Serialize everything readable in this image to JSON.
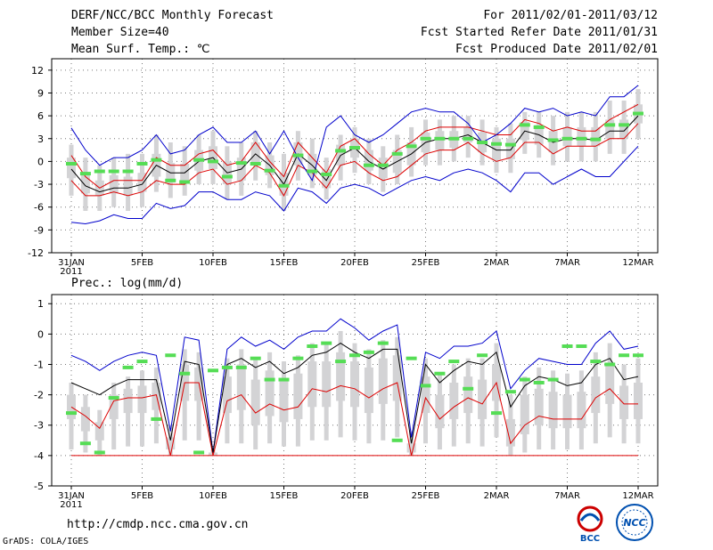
{
  "header": {
    "title": "DERF/NCC/BCC Monthly Forecast",
    "member": "Member Size=40",
    "variable": "Mean Surf. Temp.: ℃",
    "period": "For 2011/02/01-2011/03/12",
    "start": "Fcst Started Refer Date 2011/01/31",
    "produced": "Fcst Produced Date 2011/02/01"
  },
  "footer": {
    "url": "http://cmdp.ncc.cma.gov.cn",
    "grads": "GrADS: COLA/IGES",
    "logo1_text": "BCC",
    "logo2_text": "NCC"
  },
  "chart_data": [
    {
      "type": "line",
      "title": "Mean Surf. Temp.: ℃",
      "x_tick_labels": [
        "31JAN",
        "5FEB",
        "10FEB",
        "15FEB",
        "20FEB",
        "25FEB",
        "2MAR",
        "7MAR",
        "12MAR"
      ],
      "x_tick_sublabel": "2011",
      "ylim": [
        -12,
        13.5
      ],
      "yticks": [
        -12,
        -9,
        -6,
        -3,
        0,
        3,
        6,
        9,
        12
      ],
      "series": [
        {
          "name": "max",
          "color": "#0000cc",
          "values": [
            4.4,
            1.5,
            -0.5,
            0.5,
            0.5,
            1.5,
            3.5,
            1.0,
            1.5,
            3.5,
            4.5,
            2.5,
            2.5,
            4.0,
            1.0,
            4.0,
            0.5,
            -2.5,
            4.5,
            6.0,
            3.5,
            2.5,
            3.5,
            5.0,
            6.5,
            7.0,
            6.5,
            6.5,
            5.0,
            2.5,
            3.5,
            5.0,
            7.0,
            6.5,
            7.0,
            6.0,
            6.5,
            6.0,
            8.5,
            8.5,
            10.0
          ]
        },
        {
          "name": "upper",
          "color": "#dd0000",
          "values": [
            0.8,
            -2.0,
            -3.5,
            -2.5,
            -2.5,
            -2.5,
            0.5,
            -0.5,
            -0.5,
            1.0,
            1.5,
            -0.5,
            0.0,
            2.5,
            0.0,
            -2.0,
            2.5,
            0.5,
            -1.5,
            2.0,
            3.0,
            1.0,
            -0.5,
            1.5,
            2.5,
            4.0,
            4.5,
            4.5,
            4.5,
            4.0,
            3.5,
            3.5,
            5.5,
            5.0,
            4.0,
            4.5,
            4.0,
            4.0,
            5.5,
            6.5,
            7.5
          ]
        },
        {
          "name": "mean",
          "color": "#000000",
          "values": [
            -1.0,
            -3.2,
            -4.0,
            -3.5,
            -3.5,
            -3.0,
            -0.5,
            -1.5,
            -1.5,
            0.0,
            0.5,
            -1.5,
            -1.0,
            1.0,
            -0.5,
            -3.0,
            1.0,
            -0.5,
            -2.5,
            0.8,
            1.8,
            0.0,
            -1.0,
            0.0,
            1.0,
            2.5,
            3.0,
            3.0,
            3.5,
            2.5,
            1.5,
            1.5,
            4.0,
            3.5,
            2.5,
            3.0,
            3.0,
            2.8,
            4.0,
            4.0,
            6.0
          ]
        },
        {
          "name": "lower",
          "color": "#dd0000",
          "values": [
            -2.5,
            -4.5,
            -4.5,
            -4.0,
            -4.5,
            -4.0,
            -2.5,
            -3.0,
            -3.0,
            -1.5,
            -1.0,
            -3.0,
            -2.5,
            -0.5,
            -1.5,
            -4.5,
            -0.5,
            -1.5,
            -3.5,
            -0.5,
            0.0,
            -1.5,
            -2.5,
            -2.0,
            -0.5,
            1.0,
            1.5,
            1.5,
            2.5,
            1.0,
            0.0,
            0.5,
            2.5,
            2.5,
            1.0,
            2.0,
            2.0,
            2.0,
            3.0,
            3.0,
            5.0
          ]
        },
        {
          "name": "min",
          "color": "#0000cc",
          "values": [
            -8.0,
            -8.2,
            -7.8,
            -7.0,
            -7.5,
            -7.5,
            -5.5,
            -6.2,
            -5.8,
            -4.0,
            -4.0,
            -5.0,
            -5.0,
            -4.0,
            -4.5,
            -6.5,
            -3.5,
            -4.0,
            -5.5,
            -3.5,
            -3.0,
            -3.5,
            -4.5,
            -3.5,
            -2.5,
            -2.0,
            -2.5,
            -1.5,
            -1.0,
            -1.5,
            -2.5,
            -4.0,
            -1.5,
            -1.5,
            -3.0,
            -2.0,
            -1.0,
            -2.0,
            -2.0,
            0.0,
            2.0
          ]
        },
        {
          "name": "green",
          "color": "#55dd55",
          "values": [
            -0.3,
            -1.6,
            -1.3,
            -1.3,
            -1.3,
            -0.3,
            0.2,
            -2.5,
            -2.7,
            0.2,
            0.0,
            -2.0,
            -0.2,
            -0.3,
            -1.2,
            -3.2,
            0.8,
            -1.3,
            -1.7,
            1.4,
            1.8,
            -0.5,
            -0.5,
            1.0,
            2.0,
            3.0,
            3.0,
            3.0,
            3.0,
            2.5,
            2.3,
            2.2,
            4.8,
            4.5,
            2.8,
            3.0,
            3.0,
            2.9,
            4.8,
            4.8,
            6.3
          ]
        },
        {
          "name": "box_outer_high",
          "color": "#d3d3d5",
          "values": [
            2.2,
            0.5,
            -0.5,
            0.5,
            1.0,
            1.0,
            3.5,
            2.5,
            2.0,
            3.5,
            4.0,
            2.0,
            2.5,
            4.0,
            2.5,
            1.0,
            4.0,
            3.0,
            0.5,
            3.5,
            4.5,
            3.0,
            2.0,
            3.5,
            4.5,
            5.5,
            5.5,
            6.0,
            6.0,
            5.5,
            4.5,
            5.0,
            6.5,
            6.5,
            6.0,
            6.5,
            6.5,
            6.5,
            8.0,
            8.0,
            9.5
          ]
        },
        {
          "name": "box_inner_high",
          "color": "#d3d3d5",
          "values": [
            0.5,
            -1.5,
            -2.5,
            -1.8,
            -2.0,
            -1.5,
            1.0,
            -0.2,
            -0.3,
            1.5,
            2.0,
            0.0,
            0.5,
            2.5,
            0.8,
            -1.5,
            2.5,
            1.0,
            -1.0,
            2.2,
            3.0,
            1.5,
            0.5,
            1.5,
            2.5,
            3.8,
            4.0,
            4.0,
            4.5,
            3.8,
            3.0,
            3.0,
            5.2,
            4.8,
            4.0,
            4.5,
            4.5,
            4.5,
            5.5,
            5.5,
            7.5
          ]
        },
        {
          "name": "box_inner_low",
          "color": "#d3d3d5",
          "values": [
            -2.2,
            -4.2,
            -4.5,
            -4.2,
            -4.5,
            -4.0,
            -2.0,
            -2.8,
            -2.8,
            -1.2,
            -1.0,
            -3.0,
            -2.5,
            -0.5,
            -1.8,
            -4.5,
            -0.5,
            -1.8,
            -3.5,
            -0.5,
            0.5,
            -1.2,
            -2.2,
            -1.5,
            -0.5,
            1.2,
            1.5,
            1.8,
            2.5,
            1.2,
            0.2,
            0.3,
            2.8,
            2.2,
            1.2,
            2.0,
            2.0,
            2.0,
            3.0,
            3.0,
            5.0
          ]
        },
        {
          "name": "box_outer_low",
          "color": "#d3d3d5",
          "values": [
            -4.5,
            -6.5,
            -6.5,
            -6.0,
            -6.5,
            -6.0,
            -4.0,
            -4.8,
            -4.5,
            -3.0,
            -3.0,
            -5.0,
            -4.5,
            -2.5,
            -3.5,
            -6.5,
            -2.5,
            -3.5,
            -5.0,
            -2.5,
            -1.5,
            -3.0,
            -4.0,
            -3.0,
            -2.0,
            -0.5,
            -0.5,
            0.0,
            0.5,
            -0.5,
            -1.5,
            -1.5,
            1.0,
            0.5,
            -0.5,
            0.0,
            0.0,
            0.0,
            1.0,
            1.0,
            3.0
          ]
        }
      ]
    },
    {
      "type": "line",
      "title": "Prec.: log(mm/d)",
      "x_tick_labels": [
        "31JAN",
        "5FEB",
        "10FEB",
        "15FEB",
        "20FEB",
        "25FEB",
        "2MAR",
        "7MAR",
        "12MAR"
      ],
      "x_tick_sublabel": "2011",
      "ylim": [
        -5,
        1.3
      ],
      "yticks": [
        -5,
        -4,
        -3,
        -2,
        -1,
        0,
        1
      ],
      "series": [
        {
          "name": "max",
          "color": "#0000cc",
          "values": [
            -0.7,
            -0.9,
            -1.2,
            -0.9,
            -0.7,
            -0.6,
            -0.7,
            -3.2,
            -0.1,
            -0.2,
            -3.9,
            -0.5,
            -0.1,
            -0.4,
            -0.2,
            -0.5,
            -0.1,
            0.1,
            0.1,
            0.5,
            0.2,
            -0.2,
            0.1,
            0.3,
            -3.4,
            -0.6,
            -0.8,
            -0.4,
            -0.4,
            -0.3,
            0.1,
            -1.8,
            -1.2,
            -0.8,
            -0.9,
            -1.0,
            -1.0,
            -0.3,
            0.1,
            -0.5,
            -0.4
          ]
        },
        {
          "name": "mean",
          "color": "#000000",
          "values": [
            -1.6,
            -1.8,
            -2.0,
            -1.7,
            -1.5,
            -1.5,
            -1.5,
            -3.5,
            -0.9,
            -1.0,
            -3.9,
            -1.0,
            -0.8,
            -1.1,
            -0.9,
            -1.3,
            -1.1,
            -0.7,
            -0.6,
            -0.3,
            -0.6,
            -0.8,
            -0.5,
            -0.5,
            -3.6,
            -1.0,
            -1.6,
            -1.2,
            -0.9,
            -1.0,
            -0.6,
            -2.4,
            -1.7,
            -1.4,
            -1.5,
            -1.7,
            -1.6,
            -1.0,
            -0.8,
            -1.5,
            -1.4
          ]
        },
        {
          "name": "lower",
          "color": "#dd0000",
          "values": [
            -2.4,
            -2.7,
            -3.1,
            -2.2,
            -2.1,
            -2.1,
            -2.0,
            -4.0,
            -1.6,
            -1.6,
            -4.0,
            -2.2,
            -2.0,
            -2.6,
            -2.3,
            -2.5,
            -2.4,
            -1.8,
            -1.9,
            -1.7,
            -1.8,
            -2.1,
            -1.8,
            -1.6,
            -4.0,
            -2.1,
            -2.8,
            -2.4,
            -2.1,
            -2.3,
            -1.6,
            -3.6,
            -3.0,
            -2.7,
            -2.8,
            -2.8,
            -2.8,
            -2.1,
            -1.8,
            -2.3,
            -2.3
          ]
        },
        {
          "name": "floor",
          "color": "#dd0000",
          "values": [
            -4.0,
            -4.0,
            -4.0,
            -4.0,
            -4.0,
            -4.0,
            -4.0,
            -4.0,
            -4.0,
            -4.0,
            -4.0,
            -4.0,
            -4.0,
            -4.0,
            -4.0,
            -4.0,
            -4.0,
            -4.0,
            -4.0,
            -4.0,
            -4.0,
            -4.0,
            -4.0,
            -4.0,
            -4.0,
            -4.0,
            -4.0,
            -4.0,
            -4.0,
            -4.0,
            -4.0,
            -4.0,
            -4.0,
            -4.0,
            -4.0,
            -4.0,
            -4.0,
            -4.0,
            -4.0,
            -4.0,
            -4.0
          ]
        },
        {
          "name": "green",
          "color": "#55dd55",
          "values": [
            -2.6,
            -3.6,
            -3.9,
            -2.1,
            -1.1,
            -0.9,
            -2.8,
            -0.7,
            -1.3,
            -3.9,
            -1.2,
            -1.1,
            -1.1,
            -0.8,
            -1.5,
            -1.5,
            -0.8,
            -0.4,
            -0.3,
            -0.9,
            -0.7,
            -0.6,
            -0.3,
            -3.5,
            -0.8,
            -1.7,
            -1.3,
            -0.9,
            -1.8,
            -0.7,
            -2.6,
            -1.9,
            -1.5,
            -1.6,
            -1.5,
            -0.4,
            -0.4,
            -0.9,
            -1.0,
            -0.7,
            -0.7
          ]
        },
        {
          "name": "box_outer_high",
          "color": "#d3d3d5",
          "values": [
            -1.6,
            -2.0,
            -2.5,
            -1.6,
            -1.4,
            -1.2,
            -1.1,
            -3.0,
            -0.5,
            -0.6,
            -3.8,
            -0.8,
            -0.5,
            -0.8,
            -0.6,
            -0.9,
            -0.7,
            -0.3,
            -0.3,
            0.1,
            -0.3,
            -0.5,
            -0.2,
            -0.1,
            -3.2,
            -0.8,
            -1.3,
            -1.0,
            -0.8,
            -0.8,
            -0.3,
            -2.0,
            -1.4,
            -1.1,
            -1.2,
            -1.3,
            -1.2,
            -0.6,
            -0.3,
            -1.0,
            -0.8
          ]
        },
        {
          "name": "box_inner_high",
          "color": "#d3d3d5",
          "values": [
            -2.0,
            -2.4,
            -2.9,
            -2.0,
            -1.8,
            -1.7,
            -1.6,
            -3.4,
            -1.0,
            -1.1,
            -3.9,
            -1.4,
            -1.0,
            -1.5,
            -1.2,
            -1.5,
            -1.3,
            -0.9,
            -0.9,
            -0.6,
            -0.9,
            -1.1,
            -0.8,
            -0.7,
            -3.6,
            -1.4,
            -2.0,
            -1.6,
            -1.4,
            -1.5,
            -1.0,
            -2.8,
            -2.0,
            -1.8,
            -1.9,
            -2.0,
            -1.9,
            -1.4,
            -1.0,
            -1.7,
            -1.6
          ]
        },
        {
          "name": "box_inner_low",
          "color": "#d3d3d5",
          "values": [
            -2.8,
            -3.2,
            -3.5,
            -2.8,
            -2.6,
            -2.6,
            -2.5,
            -3.8,
            -2.2,
            -2.2,
            -4.0,
            -2.6,
            -2.5,
            -3.0,
            -2.7,
            -2.9,
            -2.8,
            -2.4,
            -2.4,
            -2.2,
            -2.4,
            -2.6,
            -2.3,
            -2.2,
            -3.9,
            -2.6,
            -3.1,
            -2.8,
            -2.6,
            -2.8,
            -2.2,
            -3.7,
            -3.3,
            -3.0,
            -3.1,
            -3.1,
            -3.1,
            -2.6,
            -2.3,
            -2.8,
            -2.8
          ]
        },
        {
          "name": "box_outer_low",
          "color": "#d3d3d5",
          "values": [
            -3.8,
            -3.9,
            -4.0,
            -3.8,
            -3.7,
            -3.7,
            -3.6,
            -4.0,
            -3.5,
            -3.5,
            -4.0,
            -3.6,
            -3.6,
            -3.8,
            -3.6,
            -3.7,
            -3.7,
            -3.5,
            -3.5,
            -3.4,
            -3.5,
            -3.6,
            -3.5,
            -3.4,
            -4.0,
            -3.6,
            -3.8,
            -3.7,
            -3.6,
            -3.7,
            -3.4,
            -4.0,
            -3.9,
            -3.8,
            -3.8,
            -3.8,
            -3.8,
            -3.6,
            -3.4,
            -3.6,
            -3.6
          ]
        }
      ]
    }
  ]
}
